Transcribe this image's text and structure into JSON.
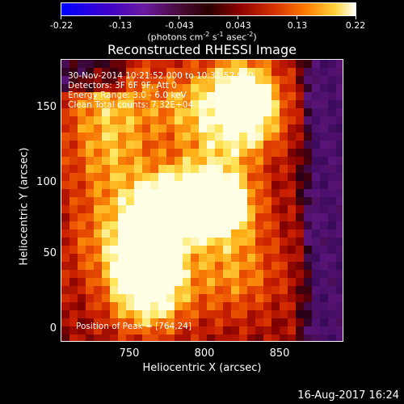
{
  "colorbar": {
    "ticks": [
      "-0.22",
      "-0.13",
      "-0.043",
      "0.043",
      "0.13",
      "0.22"
    ],
    "units": "(photons cm",
    "units_sup1": "-2",
    "units_mid": " s",
    "units_sup2": "-1",
    "units_end": " asec",
    "units_sup3": "-2",
    "units_close": ")"
  },
  "chart_data": {
    "type": "heatmap",
    "title": "Reconstructed RHESSI Image",
    "xlabel": "Heliocentric X (arcsec)",
    "ylabel": "Heliocentric Y (arcsec)",
    "xticks": [
      "750",
      "800",
      "850"
    ],
    "yticks": [
      "0",
      "50",
      "100",
      "150"
    ],
    "xlim": [
      706,
      894
    ],
    "ylim": [
      -8,
      180
    ],
    "zlim": [
      -0.22,
      0.22
    ],
    "peak": [
      764,
      24
    ]
  },
  "info": {
    "line1": "30-Nov-2014 10:21:52.000 to 10:31:52.000",
    "line2": "Detectors: 3F 6F 9F, Att 0",
    "line3": "Energy Range: 3.0 - 6.0 keV",
    "line4": "Clean    Total counts: 7.32E+04",
    "peak_label": "Position of Peak = [764,24]"
  },
  "footer": "16-Aug-2017 16:24"
}
